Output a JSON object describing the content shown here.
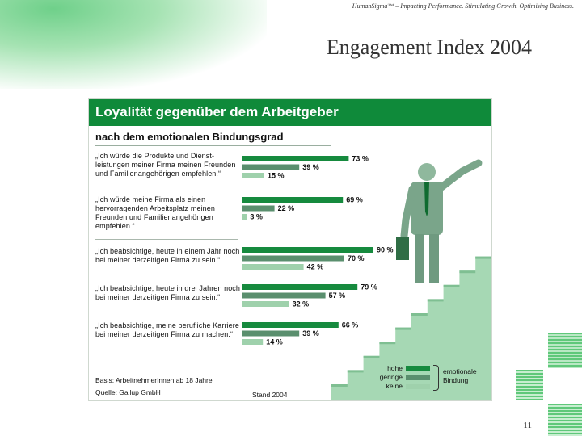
{
  "slide": {
    "tagline": "HumanSigma™ – Impacting Performance. Stimulating Growth. Optimising Business.",
    "title": "Engagement Index 2004",
    "page_number": "11"
  },
  "colors": {
    "header_green": "#0f8a3a",
    "hohe": "#168a3e",
    "geringe": "#5a8f6e",
    "keine": "#9fd1ac",
    "stairs": "#a6d8b4"
  },
  "legend": {
    "items": [
      "hohe",
      "geringe",
      "keine"
    ],
    "group_label_1": "emotionale",
    "group_label_2": "Bindung"
  },
  "footer": {
    "basis": "Basis: ArbeitnehmerInnen ab 18 Jahre",
    "source": "Quelle: Gallup GmbH",
    "stand": "Stand 2004"
  },
  "chart_data": {
    "type": "bar",
    "title": "Loyalität gegenüber dem Arbeitgeber",
    "subtitle": "nach dem emotionalen Bindungsgrad",
    "unit": "%",
    "orientation": "horizontal",
    "categories": [
      "„Ich würde die Produkte und Dienst-leistungen meiner Firma meinen Freunden und Familienangehörigen empfehlen.“",
      "„Ich würde meine Firma als einen hervorragenden Arbeitsplatz meinen Freunden und Familienangehörigen empfehlen.“",
      "„Ich beabsichtige, heute in einem Jahr noch bei meiner derzeitigen Firma zu sein.“",
      "„Ich beabsichtige, heute in drei Jahren noch bei meiner derzeitigen Firma zu sein.“",
      "„Ich beabsichtige, meine berufliche Karriere bei meiner derzeitigen Firma zu machen.“"
    ],
    "series": [
      {
        "name": "hohe",
        "values": [
          73,
          69,
          90,
          79,
          66
        ]
      },
      {
        "name": "geringe",
        "values": [
          39,
          22,
          70,
          57,
          39
        ]
      },
      {
        "name": "keine",
        "values": [
          15,
          3,
          42,
          32,
          14
        ]
      }
    ],
    "value_labels": [
      [
        "73 %",
        "39 %",
        "15 %"
      ],
      [
        "69 %",
        "22 %",
        "3 %"
      ],
      [
        "90 %",
        "70 %",
        "42 %"
      ],
      [
        "79 %",
        "57 %",
        "32 %"
      ],
      [
        "66 %",
        "39 %",
        "14 %"
      ]
    ],
    "xlim": [
      0,
      100
    ],
    "grid": false,
    "legend_position": "bottom-right"
  }
}
